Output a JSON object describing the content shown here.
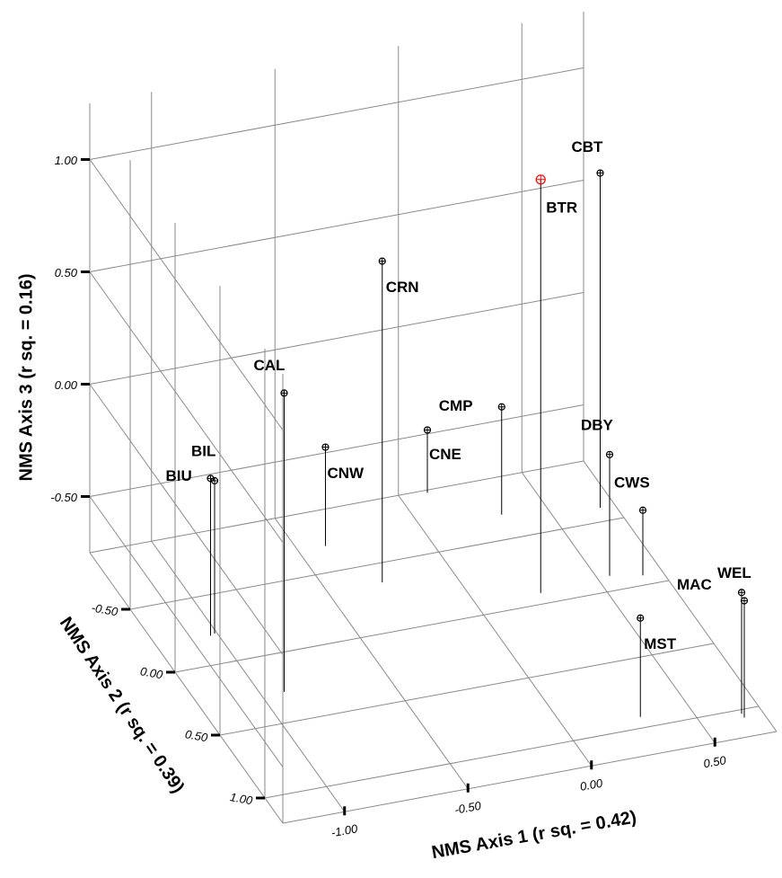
{
  "chart_data": {
    "type": "scatter3d",
    "xlabel": "NMS Axis 1 (r sq. = 0.42)",
    "ylabel": "NMS Axis 2 (r sq. = 0.39)",
    "zlabel": "NMS Axis 3 (r sq. = 0.16)",
    "categories": [
      "CBT",
      "BTR",
      "CRN",
      "CAL",
      "CMP",
      "CNE",
      "CNW",
      "BIL",
      "BIU",
      "DBY",
      "CWS",
      "MST",
      "MAC",
      "WEL"
    ],
    "x": [
      0.69,
      0.26,
      -0.28,
      -0.91,
      0.32,
      0.11,
      -0.39,
      -1.01,
      -1.03,
      0.55,
      0.67,
      0.3,
      0.67,
      0.67
    ],
    "y": [
      -0.6,
      -0.08,
      -0.36,
      0.28,
      -0.68,
      -0.93,
      -0.69,
      -0.22,
      -0.21,
      -0.11,
      -0.07,
      0.92,
      1.03,
      1.06
    ],
    "z": [
      0.74,
      1.09,
      0.68,
      0.58,
      -0.27,
      -0.47,
      -0.31,
      -0.07,
      -0.05,
      -0.21,
      -0.46,
      -0.31,
      -0.21,
      -0.23
    ],
    "point_colors": [
      "#000000",
      "#ff0000",
      "#000000",
      "#000000",
      "#000000",
      "#000000",
      "#000000",
      "#000000",
      "#000000",
      "#000000",
      "#000000",
      "#000000",
      "#000000",
      "#000000"
    ],
    "drop_lines": true,
    "xlim": [
      -1.25,
      0.75
    ],
    "ylim": [
      -0.95,
      1.2
    ],
    "zlim": [
      -0.75,
      1.25
    ],
    "xticks": [
      {
        "value": -1,
        "label": "-1.00"
      },
      {
        "value": -0.5,
        "label": "-0.50"
      },
      {
        "value": 0,
        "label": "0.00"
      },
      {
        "value": 0.5,
        "label": "0.50"
      }
    ],
    "yticks": [
      {
        "value": -0.5,
        "label": "-0.50"
      },
      {
        "value": 0,
        "label": "0.00"
      },
      {
        "value": 0.5,
        "label": "0.50"
      },
      {
        "value": 1,
        "label": "1.00"
      }
    ],
    "zticks": [
      {
        "value": -0.5,
        "label": "-0.50"
      },
      {
        "value": 0,
        "label": "0.00"
      },
      {
        "value": 0.5,
        "label": "0.50"
      },
      {
        "value": 1,
        "label": "1.00"
      }
    ],
    "grid": true
  }
}
